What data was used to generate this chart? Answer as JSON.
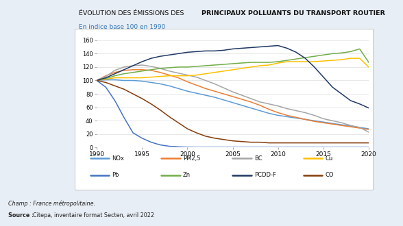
{
  "title_normal": "ÉVOLUTION DES ÉMISSIONS DES ",
  "title_bold": "PRINCIPAUX POLLUANTS DU TRANSPORT ROUTIER",
  "subtitle": "En indice base 100 en 1990",
  "champ": "Champ : France métropolitaine.",
  "source_label": "Source : ",
  "source_text": "Citepa, inventaire format Secten, avril 2022",
  "years": [
    1990,
    1991,
    1992,
    1993,
    1994,
    1995,
    1996,
    1997,
    1998,
    1999,
    2000,
    2001,
    2002,
    2003,
    2004,
    2005,
    2006,
    2007,
    2008,
    2009,
    2010,
    2011,
    2012,
    2013,
    2014,
    2015,
    2016,
    2017,
    2018,
    2019,
    2020
  ],
  "series": {
    "NOx": {
      "color": "#5B9BD5",
      "values": [
        100,
        101,
        101,
        100,
        100,
        99,
        97,
        95,
        92,
        88,
        84,
        81,
        78,
        75,
        71,
        67,
        63,
        59,
        55,
        51,
        48,
        46,
        44,
        42,
        40,
        38,
        36,
        34,
        32,
        30,
        28
      ]
    },
    "PM2,5": {
      "color": "#ED7D31",
      "values": [
        100,
        107,
        112,
        115,
        116,
        116,
        115,
        112,
        108,
        104,
        98,
        93,
        88,
        84,
        80,
        76,
        72,
        68,
        63,
        57,
        52,
        48,
        45,
        42,
        39,
        37,
        35,
        33,
        31,
        29,
        27
      ]
    },
    "BC": {
      "color": "#A5A5A5",
      "values": [
        100,
        106,
        115,
        120,
        122,
        123,
        121,
        118,
        114,
        111,
        108,
        105,
        100,
        95,
        89,
        83,
        78,
        73,
        68,
        65,
        62,
        58,
        55,
        52,
        48,
        43,
        40,
        37,
        33,
        30,
        23
      ]
    },
    "Cu": {
      "color": "#FFC000",
      "values": [
        100,
        102,
        104,
        104,
        104,
        104,
        105,
        106,
        107,
        107,
        107,
        108,
        110,
        112,
        114,
        116,
        118,
        120,
        122,
        123,
        126,
        128,
        128,
        128,
        128,
        129,
        130,
        131,
        133,
        133,
        120
      ]
    },
    "Pb": {
      "color": "#4472C4",
      "values": [
        100,
        90,
        70,
        45,
        22,
        14,
        8,
        4,
        2,
        1,
        0.5,
        0.3,
        0.3,
        0.3,
        0.3,
        0.3,
        0.3,
        0.3,
        0.3,
        0.3,
        0.3,
        0.3,
        0.3,
        0.3,
        0.3,
        0.3,
        0.3,
        0.3,
        0.3,
        0.3,
        0.3
      ]
    },
    "Zn": {
      "color": "#70AD47",
      "values": [
        100,
        103,
        107,
        110,
        112,
        114,
        116,
        118,
        119,
        120,
        120,
        121,
        122,
        123,
        124,
        125,
        126,
        127,
        127,
        127,
        128,
        130,
        132,
        134,
        136,
        138,
        140,
        141,
        143,
        147,
        127
      ]
    },
    "PCDD-F": {
      "color": "#1F3864",
      "values": [
        100,
        104,
        110,
        116,
        122,
        128,
        133,
        136,
        138,
        140,
        142,
        143,
        144,
        144,
        145,
        147,
        148,
        149,
        150,
        151,
        152,
        148,
        142,
        133,
        120,
        105,
        90,
        80,
        70,
        65,
        59
      ]
    },
    "CO": {
      "color": "#843C0C",
      "values": [
        100,
        97,
        92,
        87,
        80,
        73,
        65,
        56,
        46,
        37,
        28,
        22,
        17,
        14,
        12,
        10,
        9,
        8,
        8,
        7,
        7,
        7,
        7,
        7,
        7,
        7,
        7,
        7,
        7,
        7,
        7
      ]
    }
  },
  "ylim": [
    0,
    165
  ],
  "yticks": [
    0,
    20,
    40,
    60,
    80,
    100,
    120,
    140,
    160
  ],
  "xticks": [
    1990,
    1995,
    2000,
    2005,
    2010,
    2015,
    2020
  ],
  "bg_color": "#E8EEF5",
  "plot_bg": "#FFFFFF",
  "border_color": "#BBBBBB",
  "grid_color": "#DDDDDD",
  "legend_order": [
    "NOx",
    "PM2,5",
    "BC",
    "Cu",
    "Pb",
    "Zn",
    "PCDD-F",
    "CO"
  ]
}
